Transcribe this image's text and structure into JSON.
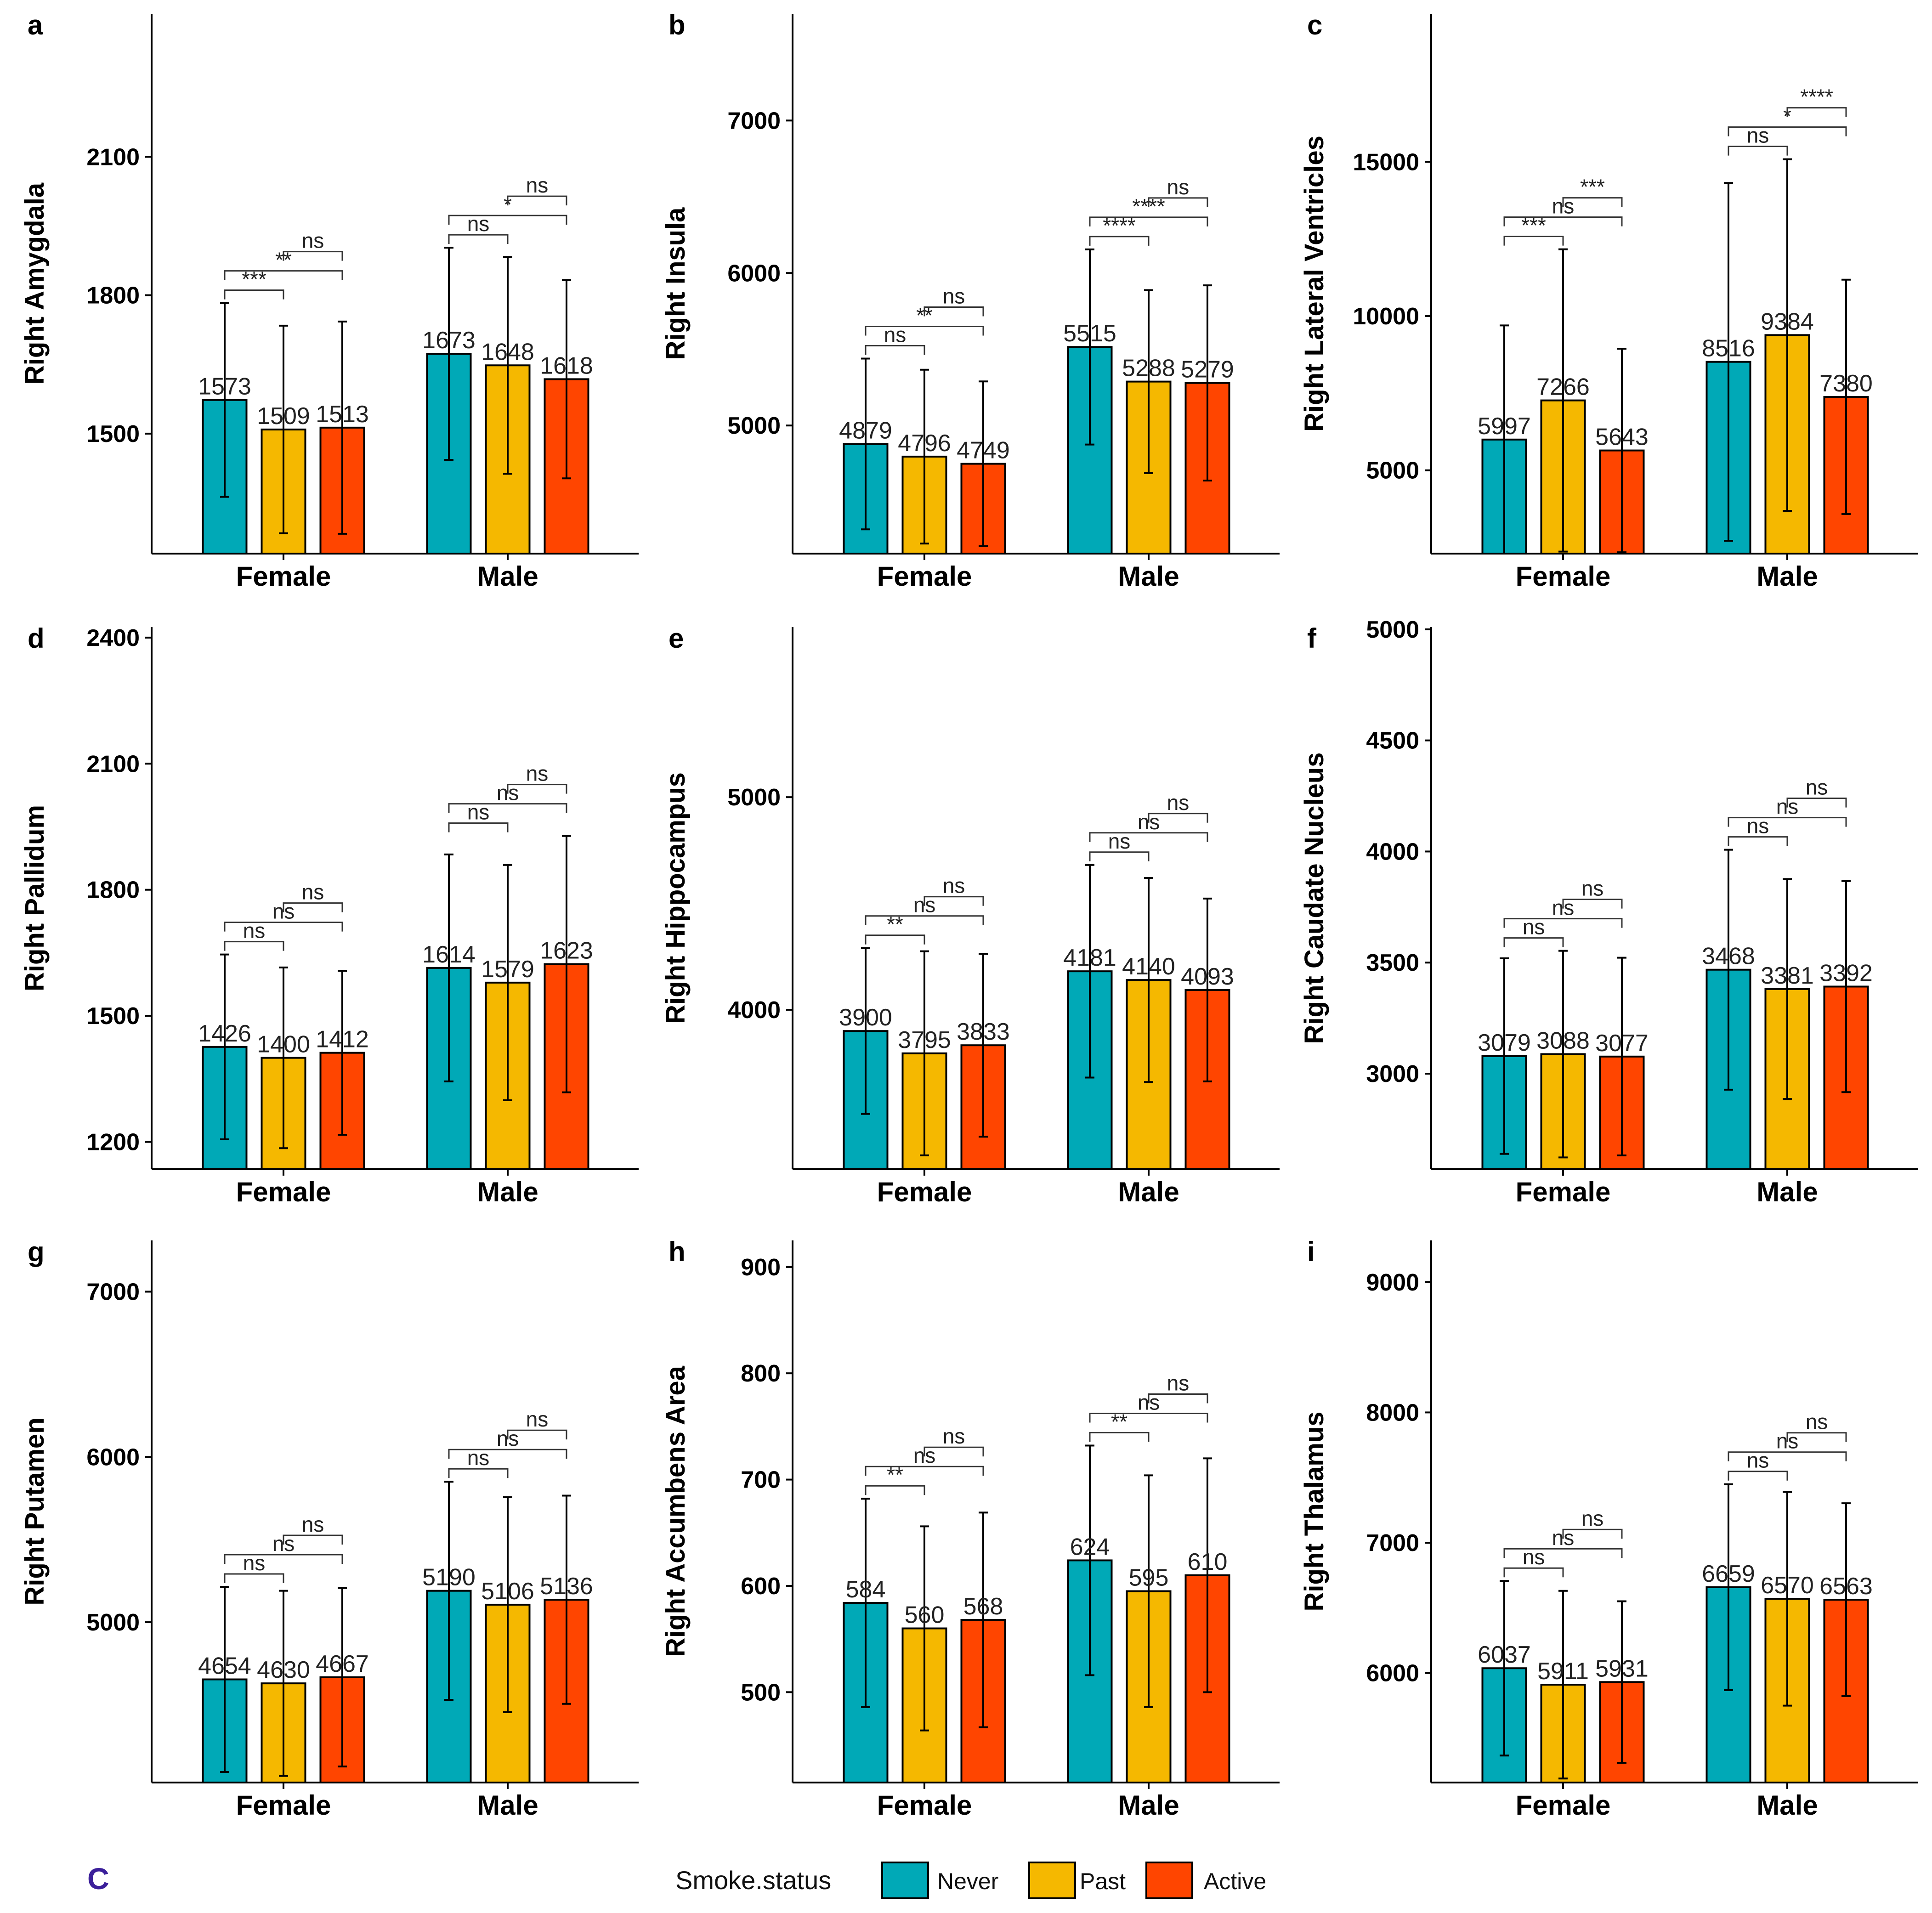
{
  "colors": {
    "Never": "#00a9b7",
    "Past": "#f5b800",
    "Active": "#ff4500",
    "axis": "#000000",
    "corner_mark": "#3b1f9a"
  },
  "corner_mark": "C",
  "legend": {
    "title": "Smoke.status",
    "items": [
      "Never",
      "Past",
      "Active"
    ]
  },
  "chart_data": [
    {
      "type": "bar",
      "panel": "a",
      "ylabel": "Right Amygdala",
      "categories": [
        "Female",
        "Male"
      ],
      "ylim": [
        1240,
        2410
      ],
      "yticks": [
        1500,
        1800,
        2100
      ],
      "series": [
        {
          "name": "Never",
          "values": [
            1573,
            1673
          ],
          "err": [
            210,
            230
          ]
        },
        {
          "name": "Past",
          "values": [
            1509,
            1648
          ],
          "err": [
            225,
            235
          ]
        },
        {
          "name": "Active",
          "values": [
            1513,
            1618
          ],
          "err": [
            230,
            215
          ]
        }
      ],
      "value_labels": [
        [
          "1573",
          "1509",
          "1513"
        ],
        [
          "1673",
          "1648",
          "1618"
        ]
      ],
      "brackets": [
        {
          "group": 0,
          "from": 0,
          "to": 1,
          "label": "***",
          "level": 1
        },
        {
          "group": 0,
          "from": 0,
          "to": 2,
          "label": "**",
          "level": 2
        },
        {
          "group": 0,
          "from": 1,
          "to": 2,
          "label": "ns",
          "level": 3
        },
        {
          "group": 1,
          "from": 0,
          "to": 1,
          "label": "ns",
          "level": 1
        },
        {
          "group": 1,
          "from": 0,
          "to": 2,
          "label": "*",
          "level": 2
        },
        {
          "group": 1,
          "from": 1,
          "to": 2,
          "label": "ns",
          "level": 3
        }
      ]
    },
    {
      "type": "bar",
      "panel": "b",
      "ylabel": "Right Insula",
      "categories": [
        "Female",
        "Male"
      ],
      "ylim": [
        4160,
        7700
      ],
      "yticks": [
        5000,
        6000,
        7000
      ],
      "series": [
        {
          "name": "Never",
          "values": [
            4879,
            5515
          ],
          "err": [
            560,
            640
          ]
        },
        {
          "name": "Past",
          "values": [
            4796,
            5288
          ],
          "err": [
            570,
            600
          ]
        },
        {
          "name": "Active",
          "values": [
            4749,
            5279
          ],
          "err": [
            540,
            640
          ]
        }
      ],
      "value_labels": [
        [
          "4879",
          "4796",
          "4749"
        ],
        [
          "5515",
          "5288",
          "5279"
        ]
      ],
      "brackets": [
        {
          "group": 0,
          "from": 0,
          "to": 1,
          "label": "ns",
          "level": 1
        },
        {
          "group": 0,
          "from": 0,
          "to": 2,
          "label": "**",
          "level": 2
        },
        {
          "group": 0,
          "from": 1,
          "to": 2,
          "label": "ns",
          "level": 3
        },
        {
          "group": 1,
          "from": 0,
          "to": 1,
          "label": "****",
          "level": 1
        },
        {
          "group": 1,
          "from": 0,
          "to": 2,
          "label": "****",
          "level": 2
        },
        {
          "group": 1,
          "from": 1,
          "to": 2,
          "label": "ns",
          "level": 3
        }
      ]
    },
    {
      "type": "bar",
      "panel": "c",
      "ylabel": "Right Lateral Ventricles",
      "categories": [
        "Female",
        "Male"
      ],
      "ylim": [
        2300,
        19800
      ],
      "yticks": [
        5000,
        10000,
        15000
      ],
      "series": [
        {
          "name": "Never",
          "values": [
            5997,
            8516
          ],
          "err": [
            3700,
            5800
          ]
        },
        {
          "name": "Past",
          "values": [
            7266,
            9384
          ],
          "err": [
            4900,
            5700
          ]
        },
        {
          "name": "Active",
          "values": [
            5643,
            7380
          ],
          "err": [
            3300,
            3800
          ]
        }
      ],
      "value_labels": [
        [
          "5997",
          "7266",
          "5643"
        ],
        [
          "8516",
          "9384",
          "7380"
        ]
      ],
      "brackets": [
        {
          "group": 0,
          "from": 0,
          "to": 1,
          "label": "***",
          "level": 1
        },
        {
          "group": 0,
          "from": 0,
          "to": 2,
          "label": "ns",
          "level": 2
        },
        {
          "group": 0,
          "from": 1,
          "to": 2,
          "label": "***",
          "level": 3
        },
        {
          "group": 1,
          "from": 0,
          "to": 1,
          "label": "ns",
          "level": 1
        },
        {
          "group": 1,
          "from": 0,
          "to": 2,
          "label": "*",
          "level": 2
        },
        {
          "group": 1,
          "from": 1,
          "to": 2,
          "label": "****",
          "level": 3
        }
      ]
    },
    {
      "type": "bar",
      "panel": "d",
      "ylabel": "Right Pallidum",
      "categories": [
        "Female",
        "Male"
      ],
      "ylim": [
        1135,
        2425
      ],
      "yticks": [
        1200,
        1500,
        1800,
        2100,
        2400
      ],
      "series": [
        {
          "name": "Never",
          "values": [
            1426,
            1614
          ],
          "err": [
            220,
            270
          ]
        },
        {
          "name": "Past",
          "values": [
            1400,
            1579
          ],
          "err": [
            215,
            280
          ]
        },
        {
          "name": "Active",
          "values": [
            1412,
            1623
          ],
          "err": [
            195,
            305
          ]
        }
      ],
      "value_labels": [
        [
          "1426",
          "1400",
          "1412"
        ],
        [
          "1614",
          "1579",
          "1623"
        ]
      ],
      "brackets": [
        {
          "group": 0,
          "from": 0,
          "to": 1,
          "label": "ns",
          "level": 1
        },
        {
          "group": 0,
          "from": 0,
          "to": 2,
          "label": "ns",
          "level": 2
        },
        {
          "group": 0,
          "from": 1,
          "to": 2,
          "label": "ns",
          "level": 3
        },
        {
          "group": 1,
          "from": 0,
          "to": 1,
          "label": "ns",
          "level": 1
        },
        {
          "group": 1,
          "from": 0,
          "to": 2,
          "label": "ns",
          "level": 2
        },
        {
          "group": 1,
          "from": 1,
          "to": 2,
          "label": "ns",
          "level": 3
        }
      ]
    },
    {
      "type": "bar",
      "panel": "e",
      "ylabel": "Right Hippocampus",
      "categories": [
        "Female",
        "Male"
      ],
      "ylim": [
        3250,
        5800
      ],
      "yticks": [
        4000,
        5000
      ],
      "series": [
        {
          "name": "Never",
          "values": [
            3900,
            4181
          ],
          "err": [
            390,
            500
          ]
        },
        {
          "name": "Past",
          "values": [
            3795,
            4140
          ],
          "err": [
            480,
            480
          ]
        },
        {
          "name": "Active",
          "values": [
            3833,
            4093
          ],
          "err": [
            430,
            430
          ]
        }
      ],
      "value_labels": [
        [
          "3900",
          "3795",
          "3833"
        ],
        [
          "4181",
          "4140",
          "4093"
        ]
      ],
      "brackets": [
        {
          "group": 0,
          "from": 0,
          "to": 1,
          "label": "**",
          "level": 1
        },
        {
          "group": 0,
          "from": 0,
          "to": 2,
          "label": "ns",
          "level": 2
        },
        {
          "group": 0,
          "from": 1,
          "to": 2,
          "label": "ns",
          "level": 3
        },
        {
          "group": 1,
          "from": 0,
          "to": 1,
          "label": "ns",
          "level": 1
        },
        {
          "group": 1,
          "from": 0,
          "to": 2,
          "label": "ns",
          "level": 2
        },
        {
          "group": 1,
          "from": 1,
          "to": 2,
          "label": "ns",
          "level": 3
        }
      ]
    },
    {
      "type": "bar",
      "panel": "f",
      "ylabel": "Right Caudate Nucleus",
      "categories": [
        "Female",
        "Male"
      ],
      "ylim": [
        2570,
        5010
      ],
      "yticks": [
        3000,
        3500,
        4000,
        4500,
        5000
      ],
      "series": [
        {
          "name": "Never",
          "values": [
            3079,
            3468
          ],
          "err": [
            440,
            540
          ]
        },
        {
          "name": "Past",
          "values": [
            3088,
            3381
          ],
          "err": [
            465,
            495
          ]
        },
        {
          "name": "Active",
          "values": [
            3077,
            3392
          ],
          "err": [
            445,
            475
          ]
        }
      ],
      "value_labels": [
        [
          "3079",
          "3088",
          "3077"
        ],
        [
          "3468",
          "3381",
          "3392"
        ]
      ],
      "brackets": [
        {
          "group": 0,
          "from": 0,
          "to": 1,
          "label": "ns",
          "level": 1
        },
        {
          "group": 0,
          "from": 0,
          "to": 2,
          "label": "ns",
          "level": 2
        },
        {
          "group": 0,
          "from": 1,
          "to": 2,
          "label": "ns",
          "level": 3
        },
        {
          "group": 1,
          "from": 0,
          "to": 1,
          "label": "ns",
          "level": 1
        },
        {
          "group": 1,
          "from": 0,
          "to": 2,
          "label": "ns",
          "level": 2
        },
        {
          "group": 1,
          "from": 1,
          "to": 2,
          "label": "ns",
          "level": 3
        }
      ]
    },
    {
      "type": "bar",
      "panel": "g",
      "ylabel": "Right Putamen",
      "categories": [
        "Female",
        "Male"
      ],
      "ylim": [
        4030,
        7310
      ],
      "yticks": [
        5000,
        6000,
        7000
      ],
      "series": [
        {
          "name": "Never",
          "values": [
            4654,
            5190
          ],
          "err": [
            560,
            660
          ]
        },
        {
          "name": "Past",
          "values": [
            4630,
            5106
          ],
          "err": [
            560,
            650
          ]
        },
        {
          "name": "Active",
          "values": [
            4667,
            5136
          ],
          "err": [
            540,
            630
          ]
        }
      ],
      "value_labels": [
        [
          "4654",
          "4630",
          "4667"
        ],
        [
          "5190",
          "5106",
          "5136"
        ]
      ],
      "brackets": [
        {
          "group": 0,
          "from": 0,
          "to": 1,
          "label": "ns",
          "level": 1
        },
        {
          "group": 0,
          "from": 0,
          "to": 2,
          "label": "ns",
          "level": 2
        },
        {
          "group": 0,
          "from": 1,
          "to": 2,
          "label": "ns",
          "level": 3
        },
        {
          "group": 1,
          "from": 0,
          "to": 1,
          "label": "ns",
          "level": 1
        },
        {
          "group": 1,
          "from": 0,
          "to": 2,
          "label": "ns",
          "level": 2
        },
        {
          "group": 1,
          "from": 1,
          "to": 2,
          "label": "ns",
          "level": 3
        }
      ]
    },
    {
      "type": "bar",
      "panel": "h",
      "ylabel": "Right Accumbens Area",
      "categories": [
        "Female",
        "Male"
      ],
      "ylim": [
        415,
        925
      ],
      "yticks": [
        500,
        600,
        700,
        800,
        900
      ],
      "series": [
        {
          "name": "Never",
          "values": [
            584,
            624
          ],
          "err": [
            98,
            108
          ]
        },
        {
          "name": "Past",
          "values": [
            560,
            595
          ],
          "err": [
            96,
            109
          ]
        },
        {
          "name": "Active",
          "values": [
            568,
            610
          ],
          "err": [
            101,
            110
          ]
        }
      ],
      "value_labels": [
        [
          "584",
          "560",
          "568"
        ],
        [
          "624",
          "595",
          "610"
        ]
      ],
      "brackets": [
        {
          "group": 0,
          "from": 0,
          "to": 1,
          "label": "**",
          "level": 1
        },
        {
          "group": 0,
          "from": 0,
          "to": 2,
          "label": "ns",
          "level": 2
        },
        {
          "group": 0,
          "from": 1,
          "to": 2,
          "label": "ns",
          "level": 3
        },
        {
          "group": 1,
          "from": 0,
          "to": 1,
          "label": "**",
          "level": 1
        },
        {
          "group": 1,
          "from": 0,
          "to": 2,
          "label": "ns",
          "level": 2
        },
        {
          "group": 1,
          "from": 1,
          "to": 2,
          "label": "ns",
          "level": 3
        }
      ]
    },
    {
      "type": "bar",
      "panel": "i",
      "ylabel": "Right Thalamus",
      "categories": [
        "Female",
        "Male"
      ],
      "ylim": [
        5160,
        9320
      ],
      "yticks": [
        6000,
        7000,
        8000,
        9000
      ],
      "series": [
        {
          "name": "Never",
          "values": [
            6037,
            6659
          ],
          "err": [
            670,
            790
          ]
        },
        {
          "name": "Past",
          "values": [
            5911,
            6570
          ],
          "err": [
            720,
            820
          ]
        },
        {
          "name": "Active",
          "values": [
            5931,
            6563
          ],
          "err": [
            620,
            740
          ]
        }
      ],
      "value_labels": [
        [
          "6037",
          "5911",
          "5931"
        ],
        [
          "6659",
          "6570",
          "6563"
        ]
      ],
      "brackets": [
        {
          "group": 0,
          "from": 0,
          "to": 1,
          "label": "ns",
          "level": 1
        },
        {
          "group": 0,
          "from": 0,
          "to": 2,
          "label": "ns",
          "level": 2
        },
        {
          "group": 0,
          "from": 1,
          "to": 2,
          "label": "ns",
          "level": 3
        },
        {
          "group": 1,
          "from": 0,
          "to": 1,
          "label": "ns",
          "level": 1
        },
        {
          "group": 1,
          "from": 0,
          "to": 2,
          "label": "ns",
          "level": 2
        },
        {
          "group": 1,
          "from": 1,
          "to": 2,
          "label": "ns",
          "level": 3
        }
      ]
    }
  ]
}
